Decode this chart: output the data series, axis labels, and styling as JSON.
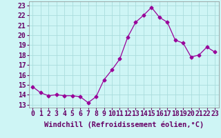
{
  "x": [
    0,
    1,
    2,
    3,
    4,
    5,
    6,
    7,
    8,
    9,
    10,
    11,
    12,
    13,
    14,
    15,
    16,
    17,
    18,
    19,
    20,
    21,
    22,
    23
  ],
  "y": [
    14.8,
    14.2,
    13.9,
    14.0,
    13.9,
    13.9,
    13.8,
    13.2,
    13.8,
    15.5,
    16.5,
    17.6,
    19.8,
    21.3,
    22.0,
    22.8,
    21.8,
    21.3,
    19.5,
    19.2,
    17.8,
    18.0,
    18.8,
    18.3
  ],
  "line_color": "#990099",
  "marker": "D",
  "marker_size": 2.5,
  "background_color": "#cef5f5",
  "grid_color": "#aadddd",
  "xlabel": "Windchill (Refroidissement éolien,°C)",
  "xlabel_fontsize": 7.5,
  "ytick_labels": [
    "13",
    "14",
    "15",
    "16",
    "17",
    "18",
    "19",
    "20",
    "21",
    "22",
    "23"
  ],
  "ytick_values": [
    13,
    14,
    15,
    16,
    17,
    18,
    19,
    20,
    21,
    22,
    23
  ],
  "ylim": [
    12.7,
    23.4
  ],
  "xlim": [
    -0.5,
    23.5
  ],
  "tick_fontsize": 7.0
}
